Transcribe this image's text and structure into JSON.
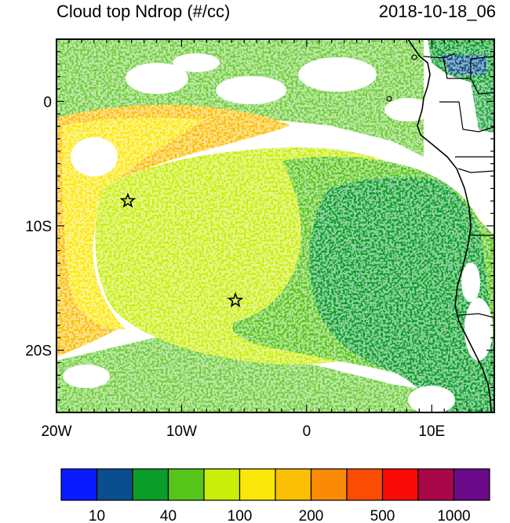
{
  "title_left": "Cloud top Ndrop (#/cc)",
  "title_right": "2018-10-18_06",
  "map": {
    "lon_range": [
      -20,
      15
    ],
    "lat_range": [
      -25,
      5
    ],
    "x_ticks": [
      {
        "lon": -20,
        "label": "20W"
      },
      {
        "lon": -10,
        "label": "10W"
      },
      {
        "lon": 0,
        "label": "0"
      },
      {
        "lon": 10,
        "label": "10E"
      }
    ],
    "y_ticks": [
      {
        "lat": 0,
        "label": "0"
      },
      {
        "lat": -10,
        "label": "10S"
      },
      {
        "lat": -20,
        "label": "20S"
      }
    ],
    "markers": [
      {
        "name": "star-marker",
        "lon": -14.3,
        "lat": -8.0
      },
      {
        "name": "star-marker",
        "lon": -5.7,
        "lat": -16.0
      }
    ]
  },
  "colorbar": {
    "colors": [
      "#0a1cff",
      "#0a4e8f",
      "#0a9d2a",
      "#57c41a",
      "#c9ee0a",
      "#fbe80a",
      "#fbbf06",
      "#fb8a06",
      "#fb4c06",
      "#fb0a0a",
      "#a8084a",
      "#6a0a88"
    ],
    "labels": [
      {
        "after_box": 1,
        "text": "10"
      },
      {
        "after_box": 3,
        "text": "40"
      },
      {
        "after_box": 5,
        "text": "100"
      },
      {
        "after_box": 7,
        "text": "200"
      },
      {
        "after_box": 9,
        "text": "500"
      },
      {
        "after_box": 11,
        "text": "1000"
      }
    ]
  }
}
